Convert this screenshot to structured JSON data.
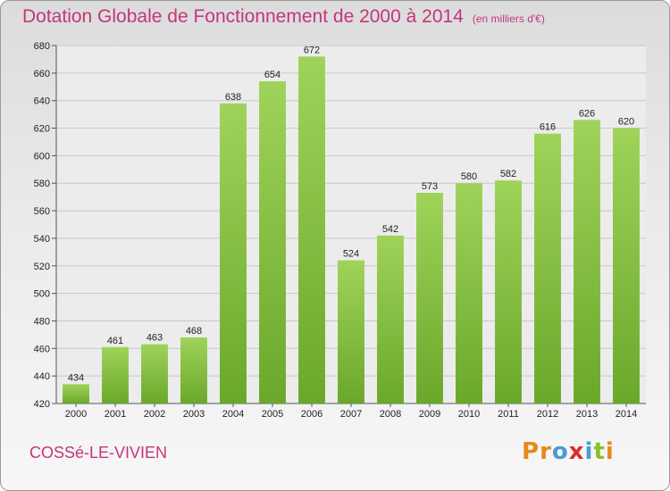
{
  "header": {
    "title": "Dotation Globale de Fonctionnement de 2000 à 2014",
    "subtitle": "(en milliers d'€)"
  },
  "footer": {
    "commune": "COSSé-LE-VIVIEN",
    "logo_text": [
      "P",
      "r",
      "o",
      "x",
      "i",
      "t",
      "i"
    ],
    "logo_colors": [
      "#e58a1a",
      "#e58a1a",
      "#4a9ad8",
      "#d4302a",
      "#4a9ad8",
      "#8bbf2a",
      "#e58a1a"
    ]
  },
  "colors": {
    "bar_top": "#9fd35a",
    "bar_bottom": "#6aa82a",
    "title": "#c4367a",
    "grid": "#c8c8c8"
  },
  "chart_data": {
    "type": "bar",
    "title": "Dotation Globale de Fonctionnement de 2000 à 2014",
    "subtitle": "(en milliers d'€)",
    "xlabel": "",
    "ylabel": "",
    "categories": [
      "2000",
      "2001",
      "2002",
      "2003",
      "2004",
      "2005",
      "2006",
      "2007",
      "2008",
      "2009",
      "2010",
      "2011",
      "2012",
      "2013",
      "2014"
    ],
    "values": [
      434,
      461,
      463,
      468,
      638,
      654,
      672,
      524,
      542,
      573,
      580,
      582,
      616,
      626,
      620
    ],
    "ylim": [
      420,
      680
    ],
    "yticks": [
      420,
      440,
      460,
      480,
      500,
      520,
      540,
      560,
      580,
      600,
      620,
      640,
      660,
      680
    ],
    "grid": true,
    "legend": "none"
  }
}
